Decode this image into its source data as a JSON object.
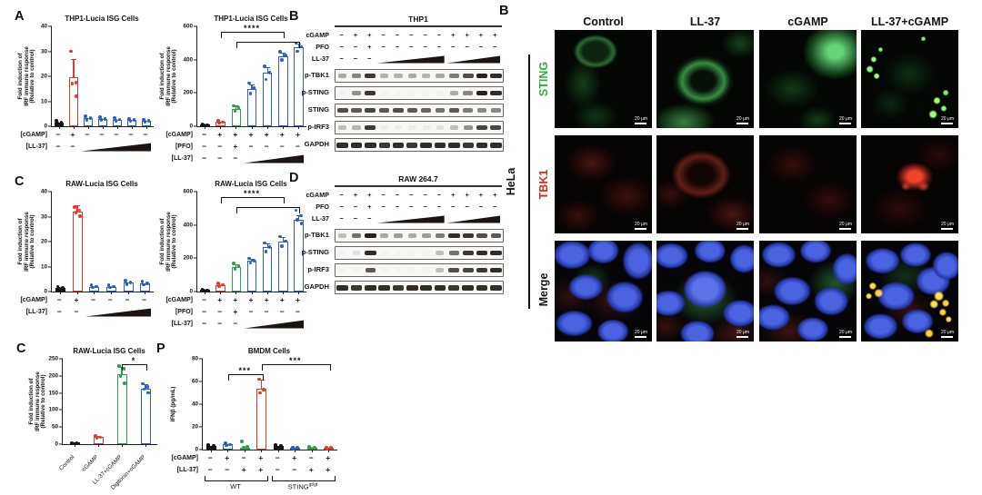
{
  "panels": {
    "a": "A",
    "b_blot": "B",
    "c": "C",
    "d": "D",
    "c_bottom": "C",
    "p": "P",
    "b_micro": "B"
  },
  "colors": {
    "black": "#141414",
    "red": "#e23a2e",
    "green": "#2ea04c",
    "blue": "#2e5fc2",
    "axis": "#222222"
  },
  "chart_data": [
    {
      "name": "thp1-left",
      "type": "bar",
      "title": "THP1-Lucia ISG Cells",
      "ylabel": [
        "Fold induction of",
        "IRF immune response",
        "(Relative to control)"
      ],
      "ylim": [
        0,
        40
      ],
      "yticks": [
        0,
        10,
        20,
        30,
        40
      ],
      "bars": [
        {
          "color": "black",
          "fill": "solid",
          "value": 1.5,
          "dots": [
            2.2,
            1.6,
            1.1
          ]
        },
        {
          "color": "red",
          "fill": "open",
          "value": 19.5,
          "err": 7.5,
          "dots": [
            30,
            17.5,
            17,
            12
          ]
        },
        {
          "color": "blue",
          "fill": "open",
          "value": 3.2,
          "dots": [
            3.9,
            3.2,
            2.6
          ]
        },
        {
          "color": "blue",
          "fill": "open",
          "value": 3.0,
          "dots": [
            3.6,
            3.0,
            2.5
          ]
        },
        {
          "color": "blue",
          "fill": "open",
          "value": 2.7,
          "dots": [
            3.3,
            2.7,
            2.2
          ]
        },
        {
          "color": "blue",
          "fill": "open",
          "value": 2.5,
          "dots": [
            3.0,
            2.5,
            2.0
          ]
        },
        {
          "color": "blue",
          "fill": "open",
          "value": 2.2,
          "dots": [
            2.7,
            2.2,
            1.8
          ]
        }
      ],
      "sign_rows": [
        {
          "label": "[cGAMP]",
          "signs": [
            "−",
            "+",
            "−",
            "−",
            "−",
            "−",
            "−"
          ]
        },
        {
          "label": "[LL-37]",
          "signs": [
            "−",
            "−"
          ],
          "ramp": [
            2,
            6
          ]
        }
      ]
    },
    {
      "name": "thp1-right",
      "type": "bar",
      "title": "THP1-Lucia ISG Cells",
      "ylabel": [
        "Fold induction of",
        "IRF immune response",
        "(Relative to control)"
      ],
      "ylim": [
        0,
        600
      ],
      "yticks": [
        0,
        200,
        400,
        600
      ],
      "bars": [
        {
          "color": "black",
          "fill": "solid",
          "value": 8,
          "dots": [
            10,
            8,
            6
          ]
        },
        {
          "color": "red",
          "fill": "open",
          "value": 25,
          "dots": [
            32,
            25,
            20
          ]
        },
        {
          "color": "green",
          "fill": "open",
          "value": 105,
          "err": 18,
          "dots": [
            122,
            108,
            92
          ]
        },
        {
          "color": "blue",
          "fill": "open",
          "value": 225,
          "err": 28,
          "dots": [
            258,
            228,
            196
          ]
        },
        {
          "color": "blue",
          "fill": "open",
          "value": 320,
          "err": 35,
          "dots": [
            360,
            322,
            282
          ]
        },
        {
          "color": "blue",
          "fill": "open",
          "value": 420,
          "err": 22,
          "dots": [
            448,
            425,
            398
          ]
        },
        {
          "color": "blue",
          "fill": "open",
          "value": 475,
          "err": 20,
          "dots": [
            500,
            478,
            450
          ]
        }
      ],
      "sig": [
        {
          "from": 1,
          "to": 5,
          "level": 0,
          "label": "****"
        },
        {
          "from": 2,
          "to": 6,
          "level": 1
        }
      ],
      "sign_rows": [
        {
          "label": "[cGAMP]",
          "signs": [
            "−",
            "+",
            "+",
            "+",
            "+",
            "+",
            "+"
          ]
        },
        {
          "label": "[PFO]",
          "signs": [
            "−",
            "−",
            "+",
            "−",
            "−",
            "−",
            "−"
          ]
        },
        {
          "label": "[LL-37]",
          "signs": [
            "−",
            "−",
            "−"
          ],
          "ramp": [
            3,
            6
          ]
        }
      ]
    },
    {
      "name": "raw-left",
      "type": "bar",
      "title": "RAW-Lucia ISG Cells",
      "ylabel": [
        "Fold induction of",
        "IRF immune response",
        "(Relative to control)"
      ],
      "ylim": [
        0,
        40
      ],
      "yticks": [
        0,
        10,
        20,
        30,
        40
      ],
      "bars": [
        {
          "color": "black",
          "fill": "solid",
          "value": 1.5,
          "dots": [
            2.0,
            1.5,
            1.0
          ]
        },
        {
          "color": "red",
          "fill": "open",
          "value": 32,
          "err": 2.5,
          "dots": [
            33.8,
            32.6,
            31.6,
            30.2
          ]
        },
        {
          "color": "blue",
          "fill": "open",
          "value": 2.0,
          "dots": [
            2.5,
            2.0,
            1.6
          ]
        },
        {
          "color": "blue",
          "fill": "open",
          "value": 2.0,
          "dots": [
            2.5,
            2.0,
            1.6
          ]
        },
        {
          "color": "blue",
          "fill": "open",
          "value": 3.6,
          "dots": [
            4.3,
            3.6,
            3.0
          ]
        },
        {
          "color": "blue",
          "fill": "open",
          "value": 3.3,
          "dots": [
            4.0,
            3.3,
            2.8
          ]
        }
      ],
      "sign_rows": [
        {
          "label": "[cGAMP]",
          "signs": [
            "−",
            "+",
            "−",
            "−",
            "−",
            "−"
          ]
        },
        {
          "label": "[LL-37]",
          "signs": [
            "−",
            "−"
          ],
          "ramp": [
            2,
            5
          ]
        }
      ]
    },
    {
      "name": "raw-right",
      "type": "bar",
      "title": "RAW-Lucia ISG Cells",
      "ylabel": [
        "Fold induction of",
        "IRF immune response",
        "(Relative to control)"
      ],
      "ylim": [
        0,
        600
      ],
      "yticks": [
        0,
        200,
        400,
        600
      ],
      "bars": [
        {
          "color": "black",
          "fill": "solid",
          "value": 8,
          "dots": [
            10,
            8,
            6
          ]
        },
        {
          "color": "red",
          "fill": "open",
          "value": 40,
          "dots": [
            48,
            40,
            34
          ]
        },
        {
          "color": "green",
          "fill": "open",
          "value": 150,
          "err": 15,
          "dots": [
            168,
            152,
            136
          ]
        },
        {
          "color": "blue",
          "fill": "open",
          "value": 185,
          "err": 12,
          "dots": [
            198,
            186,
            172
          ]
        },
        {
          "color": "blue",
          "fill": "open",
          "value": 265,
          "err": 25,
          "dots": [
            292,
            266,
            240
          ]
        },
        {
          "color": "blue",
          "fill": "open",
          "value": 300,
          "err": 28,
          "dots": [
            330,
            302,
            272
          ]
        },
        {
          "color": "blue",
          "fill": "open",
          "value": 430,
          "err": 30,
          "dots": [
            488,
            455,
            432,
            408
          ]
        }
      ],
      "sig": [
        {
          "from": 1,
          "to": 5,
          "level": 0,
          "label": "****"
        },
        {
          "from": 2,
          "to": 6,
          "level": 1
        }
      ],
      "sign_rows": [
        {
          "label": "[cGAMP]",
          "signs": [
            "−",
            "+",
            "+",
            "+",
            "+",
            "+",
            "+"
          ]
        },
        {
          "label": "[PFO]",
          "signs": [
            "−",
            "−",
            "+",
            "−",
            "−",
            "−",
            "−"
          ]
        },
        {
          "label": "[LL-37]",
          "signs": [
            "−",
            "−",
            "−"
          ],
          "ramp": [
            3,
            6
          ]
        }
      ]
    },
    {
      "name": "raw-4bar",
      "type": "bar",
      "title": "RAW-Lucia ISG Cells",
      "ylabel": [
        "Fold induction of",
        "IRF immune response",
        "(Relative to control)"
      ],
      "ylim": [
        0,
        250
      ],
      "yticks": [
        0,
        50,
        100,
        150,
        200,
        250
      ],
      "categories": [
        "Control",
        "cGAMP",
        "LL-37+cGAMP",
        "Digitonin+cGAMP"
      ],
      "bars": [
        {
          "color": "black",
          "fill": "solid",
          "value": 2,
          "dots": [
            3,
            2,
            1.5
          ]
        },
        {
          "color": "red",
          "fill": "open",
          "value": 20,
          "err": 4,
          "dots": [
            24,
            20,
            17
          ]
        },
        {
          "color": "green",
          "fill": "open",
          "value": 205,
          "err": 22,
          "dots": [
            228,
            221,
            200,
            178
          ]
        },
        {
          "color": "blue",
          "fill": "open",
          "value": 163,
          "err": 12,
          "dots": [
            177,
            168,
            161,
            150
          ]
        }
      ],
      "sig": [
        {
          "from": 2,
          "to": 3,
          "level": 0,
          "label": "*"
        }
      ]
    },
    {
      "name": "bmdm",
      "type": "bar",
      "title": "BMDM Cells",
      "ylabel": [
        "IFNβ (pg/mL)"
      ],
      "ylim": [
        0,
        80
      ],
      "yticks": [
        0,
        20,
        40,
        60,
        80
      ],
      "bars": [
        {
          "color": "black",
          "fill": "solid",
          "value": 3,
          "dots": [
            4,
            3,
            2
          ]
        },
        {
          "color": "blue",
          "fill": "open",
          "value": 4.5,
          "dots": [
            5.5,
            4.5,
            3.5
          ]
        },
        {
          "color": "green",
          "fill": "open",
          "value": 2,
          "dots": [
            7,
            2.5,
            1.5
          ]
        },
        {
          "color": "red",
          "fill": "open",
          "value": 54,
          "err": 8,
          "dots": [
            62,
            53,
            50
          ]
        },
        {
          "color": "black",
          "fill": "solid",
          "value": 3,
          "dots": [
            4,
            3,
            2
          ]
        },
        {
          "color": "blue",
          "fill": "open",
          "value": 1.5,
          "dots": [
            2,
            1.5,
            1
          ]
        },
        {
          "color": "green",
          "fill": "open",
          "value": 1.8,
          "dots": [
            2.4,
            1.8,
            1.2
          ]
        },
        {
          "color": "red",
          "fill": "open",
          "value": 1.5,
          "dots": [
            2,
            1.5,
            1
          ]
        }
      ],
      "sig": [
        {
          "from": 1,
          "to": 3,
          "level": 1,
          "label": "***"
        },
        {
          "from": 3,
          "to": 7,
          "level": 0,
          "label": "***"
        }
      ],
      "sign_rows": [
        {
          "label": "[cGAMP]",
          "signs": [
            "−",
            "+",
            "−",
            "+",
            "−",
            "+",
            "−",
            "+"
          ]
        },
        {
          "label": "[LL-37]",
          "signs": [
            "−",
            "−",
            "+",
            "+",
            "−",
            "−",
            "+",
            "+"
          ]
        }
      ],
      "groups": [
        {
          "label": "WT",
          "from": 0,
          "to": 3
        },
        {
          "label": "STING",
          "sup": "gt/gt",
          "from": 4,
          "to": 7
        }
      ]
    }
  ],
  "blots": [
    {
      "name": "thp1",
      "title": "THP1",
      "sign_rows": [
        {
          "label": "cGAMP",
          "signs": [
            "−",
            "+",
            "+",
            "−",
            "−",
            "−",
            "−",
            "−",
            "+",
            "+",
            "+",
            "+"
          ]
        },
        {
          "label": "PFO",
          "signs": [
            "−",
            "−",
            "+",
            "−",
            "−",
            "−",
            "−",
            "−",
            "−",
            "−",
            "−",
            "−"
          ]
        },
        {
          "label": "LL-37",
          "signs": [
            "−",
            "−",
            "−"
          ],
          "ramps": [
            [
              3,
              7
            ],
            [
              8,
              11
            ]
          ]
        }
      ],
      "rows": [
        {
          "label": "p-TBK1",
          "bands": [
            0.35,
            0.5,
            0.85,
            0.3,
            0.3,
            0.35,
            0.3,
            0.35,
            0.55,
            0.75,
            0.95,
            0.9
          ]
        },
        {
          "label": "p-STING",
          "bands": [
            0.03,
            0.45,
            0.85,
            0.02,
            0.02,
            0.02,
            0.02,
            0.03,
            0.35,
            0.5,
            0.95,
            0.9
          ]
        },
        {
          "label": "STING",
          "bands": [
            0.75,
            0.7,
            0.8,
            0.7,
            0.75,
            0.7,
            0.65,
            0.6,
            0.7,
            0.55,
            0.5,
            0.5
          ]
        },
        {
          "label": "p-IRF3",
          "bands": [
            0.25,
            0.3,
            0.85,
            0.05,
            0.05,
            0.05,
            0.05,
            0.1,
            0.25,
            0.45,
            0.8,
            0.8
          ]
        },
        {
          "label": "GAPDH",
          "bands": [
            0.9,
            0.9,
            0.9,
            0.85,
            0.9,
            0.85,
            0.9,
            0.9,
            0.9,
            0.85,
            0.9,
            0.9
          ]
        }
      ]
    },
    {
      "name": "raw",
      "title": "RAW 264.7",
      "sign_rows": [
        {
          "label": "cGAMP",
          "signs": [
            "−",
            "+",
            "+",
            "−",
            "−",
            "−",
            "−",
            "−",
            "+",
            "+",
            "+",
            "+"
          ]
        },
        {
          "label": "PFO",
          "signs": [
            "−",
            "−",
            "+",
            "−",
            "−",
            "−",
            "−",
            "−",
            "−",
            "−",
            "−",
            "−"
          ]
        },
        {
          "label": "LL-37",
          "signs": [
            "−",
            "−",
            "−"
          ],
          "ramps": [
            [
              3,
              7
            ],
            [
              8,
              11
            ]
          ]
        }
      ],
      "rows": [
        {
          "label": "p-TBK1",
          "bands": [
            0.25,
            0.6,
            0.95,
            0.35,
            0.4,
            0.35,
            0.4,
            0.55,
            0.9,
            0.85,
            0.75,
            0.7
          ]
        },
        {
          "label": "p-STING",
          "bands": [
            0.02,
            0.1,
            0.9,
            0.02,
            0.02,
            0.02,
            0.02,
            0.25,
            0.6,
            0.85,
            0.9,
            0.9
          ]
        },
        {
          "label": "p-IRF3",
          "bands": [
            0.02,
            0.03,
            0.7,
            0.02,
            0.02,
            0.02,
            0.02,
            0.25,
            0.75,
            0.8,
            0.85,
            0.9
          ]
        },
        {
          "label": "GAPDH",
          "bands": [
            0.9,
            0.85,
            0.9,
            0.9,
            0.85,
            0.9,
            0.9,
            0.9,
            0.85,
            0.9,
            0.9,
            0.9
          ]
        }
      ]
    }
  ],
  "microscopy": {
    "columns": [
      "Control",
      "LL-37",
      "cGAMP",
      "LL-37+cGAMP"
    ],
    "rows": [
      {
        "label": "STING",
        "color": "#2fae3c"
      },
      {
        "label": "TBK1",
        "color": "#e02619"
      },
      {
        "label": "Merge",
        "color": "#111111"
      }
    ],
    "cell_line": "HeLa",
    "scale_label": "20 μm"
  }
}
